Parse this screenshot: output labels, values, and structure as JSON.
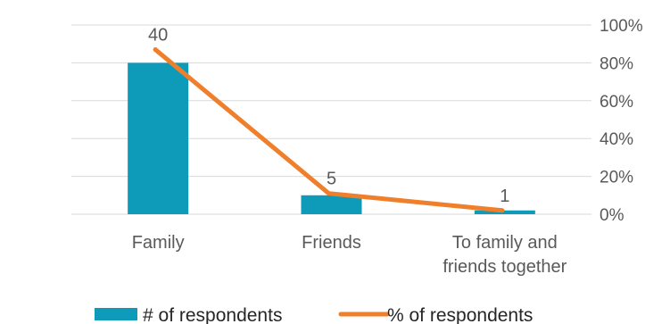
{
  "chart_data": {
    "type": "bar",
    "categories": [
      "Family",
      "Friends",
      "To family and friends together"
    ],
    "category_label_lines": [
      [
        "Family"
      ],
      [
        "Friends"
      ],
      [
        "To family and",
        "friends together"
      ]
    ],
    "series": [
      {
        "name": "# of respondents",
        "type": "bar",
        "values": [
          40,
          5,
          1
        ],
        "data_labels": [
          "40",
          "5",
          "1"
        ],
        "color": "#0e9ab9"
      },
      {
        "name": "% of respondents",
        "type": "line",
        "values": [
          87,
          11,
          2
        ],
        "color": "#f07f2c"
      }
    ],
    "ylim": [
      0,
      50
    ],
    "y2lim": [
      0,
      100
    ],
    "y2_ticks": [
      "0%",
      "20%",
      "40%",
      "60%",
      "80%",
      "100%"
    ],
    "grid": true,
    "legend_position": "bottom"
  }
}
